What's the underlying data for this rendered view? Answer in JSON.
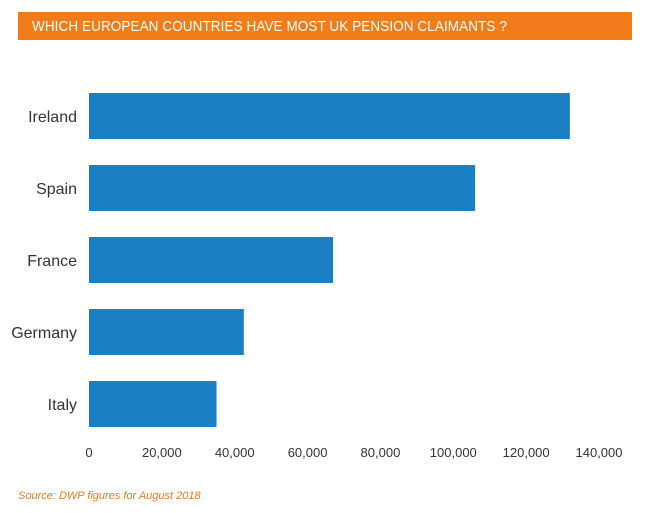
{
  "chart_data": {
    "type": "bar",
    "orientation": "horizontal",
    "title": "WHICH EUROPEAN COUNTRIES HAVE MOST UK PENSION CLAIMANTS ?",
    "categories": [
      "Ireland",
      "Spain",
      "France",
      "Germany",
      "Italy"
    ],
    "values": [
      132000,
      106000,
      67000,
      42500,
      35000
    ],
    "xlim": [
      0,
      140000
    ],
    "xticks": [
      0,
      20000,
      40000,
      60000,
      80000,
      100000,
      120000,
      140000
    ],
    "xtick_labels": [
      "0",
      "20,000",
      "40,000",
      "60,000",
      "80,000",
      "100,000",
      "120,000",
      "140,000"
    ],
    "xlabel": "",
    "ylabel": "",
    "grid": false,
    "legend": "none",
    "bar_color": "#1b7fc4",
    "source": "Source: DWP figures for August 2018"
  },
  "colors": {
    "title_background": "#f07d1a",
    "title_text": "#ffffff",
    "source_text": "#e07a2a"
  }
}
